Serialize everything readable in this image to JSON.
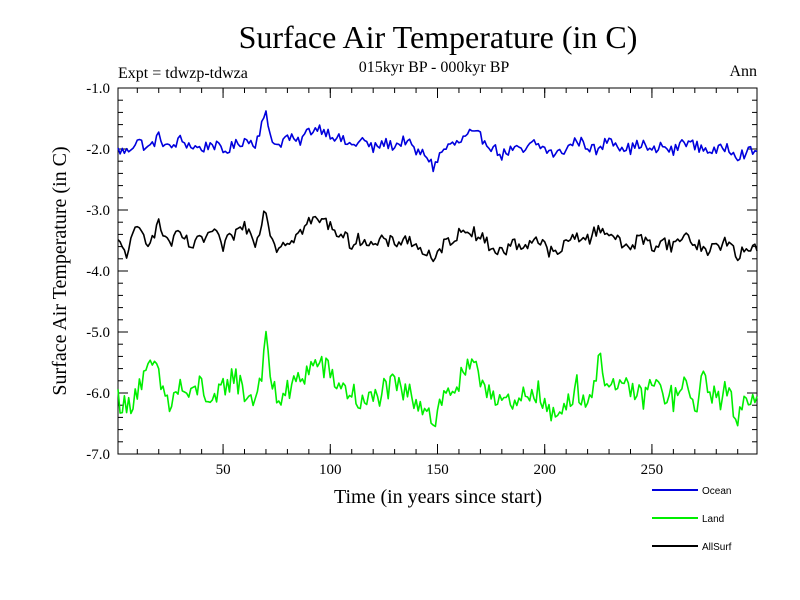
{
  "chart_data": {
    "type": "line",
    "title": "Surface Air Temperature (in C)",
    "subtitle": "015kyr BP - 000kyr BP",
    "experiment_label": "Expt = tdwzp-tdwza",
    "season_label": "Ann",
    "xlabel": "Time (in years since start)",
    "ylabel": "Surface Air Temperature (in C)",
    "xlim": [
      1,
      299
    ],
    "ylim": [
      -7.0,
      -1.0
    ],
    "x_ticks": [
      50,
      100,
      150,
      200,
      250
    ],
    "x_tick_labels": [
      "50",
      "100",
      "150",
      "200",
      "250"
    ],
    "y_ticks": [
      -1.0,
      -2.0,
      -3.0,
      -4.0,
      -5.0,
      -6.0,
      -7.0
    ],
    "y_tick_labels": [
      "-1.0",
      "-2.0",
      "-3.0",
      "-4.0",
      "-5.0",
      "-6.0",
      "-7.0"
    ],
    "grid": false,
    "legend_position": "bottom-right, below plot",
    "series": [
      {
        "name": "Ocean",
        "color": "#0000dd",
        "mean": -1.95,
        "anchors": [
          [
            1,
            -2.02
          ],
          [
            5,
            -2.05
          ],
          [
            10,
            -1.85
          ],
          [
            15,
            -2.0
          ],
          [
            20,
            -1.8
          ],
          [
            25,
            -2.0
          ],
          [
            30,
            -1.85
          ],
          [
            35,
            -1.95
          ],
          [
            40,
            -2.0
          ],
          [
            45,
            -1.9
          ],
          [
            50,
            -2.05
          ],
          [
            55,
            -1.95
          ],
          [
            60,
            -1.85
          ],
          [
            65,
            -1.9
          ],
          [
            68,
            -1.6
          ],
          [
            70,
            -1.45
          ],
          [
            72,
            -1.75
          ],
          [
            75,
            -1.95
          ],
          [
            80,
            -1.8
          ],
          [
            85,
            -1.9
          ],
          [
            90,
            -1.7
          ],
          [
            95,
            -1.65
          ],
          [
            100,
            -1.75
          ],
          [
            105,
            -1.85
          ],
          [
            110,
            -1.95
          ],
          [
            115,
            -1.85
          ],
          [
            120,
            -2.0
          ],
          [
            125,
            -1.9
          ],
          [
            130,
            -1.95
          ],
          [
            135,
            -1.85
          ],
          [
            140,
            -2.05
          ],
          [
            145,
            -2.1
          ],
          [
            148,
            -2.3
          ],
          [
            152,
            -2.05
          ],
          [
            155,
            -1.95
          ],
          [
            160,
            -1.9
          ],
          [
            165,
            -1.75
          ],
          [
            170,
            -1.8
          ],
          [
            175,
            -1.95
          ],
          [
            180,
            -2.1
          ],
          [
            185,
            -2.0
          ],
          [
            190,
            -2.05
          ],
          [
            195,
            -1.9
          ],
          [
            200,
            -2.0
          ],
          [
            205,
            -2.1
          ],
          [
            210,
            -2.0
          ],
          [
            215,
            -1.85
          ],
          [
            220,
            -1.95
          ],
          [
            225,
            -2.05
          ],
          [
            230,
            -1.8
          ],
          [
            235,
            -1.95
          ],
          [
            240,
            -2.0
          ],
          [
            245,
            -1.9
          ],
          [
            250,
            -2.05
          ],
          [
            255,
            -1.95
          ],
          [
            260,
            -2.05
          ],
          [
            265,
            -1.85
          ],
          [
            270,
            -1.95
          ],
          [
            275,
            -2.0
          ],
          [
            280,
            -2.05
          ],
          [
            285,
            -1.95
          ],
          [
            290,
            -2.1
          ],
          [
            295,
            -2.05
          ],
          [
            299,
            -2.05
          ]
        ]
      },
      {
        "name": "Land",
        "color": "#00ee00",
        "mean": -6.0,
        "anchors": [
          [
            1,
            -6.05
          ],
          [
            5,
            -6.3
          ],
          [
            10,
            -5.9
          ],
          [
            15,
            -5.7
          ],
          [
            18,
            -5.5
          ],
          [
            20,
            -5.8
          ],
          [
            25,
            -6.2
          ],
          [
            30,
            -5.9
          ],
          [
            35,
            -6.1
          ],
          [
            40,
            -5.8
          ],
          [
            45,
            -6.3
          ],
          [
            50,
            -5.9
          ],
          [
            55,
            -5.7
          ],
          [
            60,
            -6.0
          ],
          [
            65,
            -6.1
          ],
          [
            68,
            -5.6
          ],
          [
            70,
            -5.2
          ],
          [
            72,
            -5.7
          ],
          [
            75,
            -6.1
          ],
          [
            80,
            -6.0
          ],
          [
            85,
            -5.8
          ],
          [
            90,
            -5.6
          ],
          [
            95,
            -5.5
          ],
          [
            100,
            -5.7
          ],
          [
            105,
            -5.9
          ],
          [
            110,
            -6.0
          ],
          [
            115,
            -6.2
          ],
          [
            120,
            -6.1
          ],
          [
            125,
            -5.95
          ],
          [
            130,
            -5.9
          ],
          [
            135,
            -6.0
          ],
          [
            140,
            -6.1
          ],
          [
            145,
            -6.2
          ],
          [
            148,
            -6.5
          ],
          [
            152,
            -6.1
          ],
          [
            155,
            -6.0
          ],
          [
            160,
            -5.85
          ],
          [
            165,
            -5.6
          ],
          [
            170,
            -5.75
          ],
          [
            175,
            -5.95
          ],
          [
            180,
            -6.1
          ],
          [
            185,
            -6.3
          ],
          [
            190,
            -6.1
          ],
          [
            195,
            -5.9
          ],
          [
            200,
            -6.2
          ],
          [
            205,
            -6.5
          ],
          [
            210,
            -6.1
          ],
          [
            215,
            -5.9
          ],
          [
            220,
            -6.2
          ],
          [
            225,
            -5.5
          ],
          [
            230,
            -5.8
          ],
          [
            235,
            -6.0
          ],
          [
            240,
            -5.9
          ],
          [
            245,
            -6.1
          ],
          [
            250,
            -5.85
          ],
          [
            255,
            -6.0
          ],
          [
            260,
            -6.1
          ],
          [
            265,
            -5.9
          ],
          [
            270,
            -6.2
          ],
          [
            275,
            -5.75
          ],
          [
            280,
            -6.1
          ],
          [
            285,
            -6.0
          ],
          [
            290,
            -6.4
          ],
          [
            295,
            -6.0
          ],
          [
            299,
            -6.0
          ]
        ]
      },
      {
        "name": "AllSurf",
        "color": "#000000",
        "mean": -3.55,
        "anchors": [
          [
            1,
            -3.55
          ],
          [
            5,
            -3.7
          ],
          [
            10,
            -3.3
          ],
          [
            15,
            -3.5
          ],
          [
            20,
            -3.25
          ],
          [
            25,
            -3.55
          ],
          [
            30,
            -3.4
          ],
          [
            35,
            -3.6
          ],
          [
            40,
            -3.5
          ],
          [
            45,
            -3.35
          ],
          [
            50,
            -3.6
          ],
          [
            55,
            -3.4
          ],
          [
            60,
            -3.25
          ],
          [
            65,
            -3.5
          ],
          [
            68,
            -3.2
          ],
          [
            70,
            -2.95
          ],
          [
            72,
            -3.4
          ],
          [
            75,
            -3.6
          ],
          [
            80,
            -3.5
          ],
          [
            85,
            -3.4
          ],
          [
            90,
            -3.2
          ],
          [
            95,
            -3.15
          ],
          [
            100,
            -3.25
          ],
          [
            105,
            -3.4
          ],
          [
            110,
            -3.55
          ],
          [
            115,
            -3.45
          ],
          [
            120,
            -3.6
          ],
          [
            125,
            -3.5
          ],
          [
            130,
            -3.55
          ],
          [
            135,
            -3.45
          ],
          [
            140,
            -3.6
          ],
          [
            145,
            -3.7
          ],
          [
            148,
            -3.9
          ],
          [
            152,
            -3.6
          ],
          [
            155,
            -3.5
          ],
          [
            160,
            -3.4
          ],
          [
            165,
            -3.3
          ],
          [
            170,
            -3.45
          ],
          [
            175,
            -3.6
          ],
          [
            180,
            -3.7
          ],
          [
            185,
            -3.55
          ],
          [
            190,
            -3.6
          ],
          [
            195,
            -3.45
          ],
          [
            200,
            -3.6
          ],
          [
            205,
            -3.75
          ],
          [
            210,
            -3.55
          ],
          [
            215,
            -3.4
          ],
          [
            220,
            -3.5
          ],
          [
            225,
            -3.3
          ],
          [
            230,
            -3.35
          ],
          [
            235,
            -3.55
          ],
          [
            240,
            -3.6
          ],
          [
            245,
            -3.45
          ],
          [
            250,
            -3.6
          ],
          [
            255,
            -3.5
          ],
          [
            260,
            -3.6
          ],
          [
            265,
            -3.4
          ],
          [
            270,
            -3.55
          ],
          [
            275,
            -3.65
          ],
          [
            280,
            -3.6
          ],
          [
            285,
            -3.5
          ],
          [
            290,
            -3.8
          ],
          [
            295,
            -3.6
          ],
          [
            299,
            -3.6
          ]
        ]
      }
    ],
    "legend": [
      {
        "label": "Ocean",
        "color": "#0000dd"
      },
      {
        "label": "Land",
        "color": "#00ee00"
      },
      {
        "label": "AllSurf",
        "color": "#000000"
      }
    ]
  }
}
